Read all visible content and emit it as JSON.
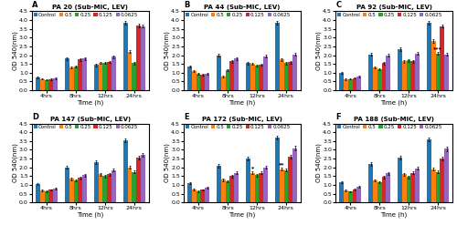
{
  "chart_data": [
    {
      "type": "bar",
      "title": "PA 20 (Sub-MIC, LEV)",
      "xlabel": "Time (h)",
      "ylabel": "OD 540(nm)",
      "categories": [
        "4hrs",
        "8hrs",
        "12hrs",
        "24hrs"
      ],
      "series": [
        {
          "name": "Control",
          "values": [
            0.75,
            1.8,
            1.45,
            3.85
          ],
          "errors": [
            0.05,
            0.08,
            0.07,
            0.1
          ]
        },
        {
          "name": "0.5",
          "values": [
            0.65,
            1.3,
            1.55,
            2.2
          ],
          "errors": [
            0.04,
            0.06,
            0.06,
            0.08
          ]
        },
        {
          "name": "0.25",
          "values": [
            0.6,
            1.35,
            1.55,
            1.55
          ],
          "errors": [
            0.04,
            0.06,
            0.05,
            0.07
          ]
        },
        {
          "name": "0.125",
          "values": [
            0.62,
            1.75,
            1.6,
            3.7
          ],
          "errors": [
            0.04,
            0.07,
            0.06,
            0.09
          ]
        },
        {
          "name": "0.0625",
          "values": [
            0.68,
            1.8,
            1.9,
            3.65
          ],
          "errors": [
            0.05,
            0.07,
            0.07,
            0.09
          ]
        }
      ],
      "annotations": [
        {
          "text": "A"
        }
      ],
      "ylim": [
        0,
        4.5
      ],
      "yticks": [
        {
          "value": 0,
          "label": "0.0"
        },
        0.5,
        {
          "value": 1,
          "label": "1.0"
        },
        1.5,
        {
          "value": 2,
          "label": "2.0"
        },
        2.5,
        {
          "value": 3,
          "label": "3.0"
        },
        3.5,
        {
          "value": 4,
          "label": "4.0"
        },
        4.5
      ],
      "legend": "upper left"
    },
    {
      "type": "bar",
      "title": "PA 44 (Sub-MIC, LEV)",
      "xlabel": "Time (h)",
      "ylabel": "OD 540(nm)",
      "categories": [
        "4hrs",
        "8hrs",
        "12hrs",
        "24hrs"
      ],
      "series": [
        {
          "name": "Control",
          "values": [
            1.35,
            2.0,
            1.55,
            3.85
          ],
          "errors": [
            0.06,
            0.09,
            0.07,
            0.1
          ]
        },
        {
          "name": "0.5",
          "values": [
            1.1,
            0.8,
            1.5,
            1.75
          ],
          "errors": [
            0.05,
            0.05,
            0.06,
            0.08
          ]
        },
        {
          "name": "0.25",
          "values": [
            0.95,
            1.15,
            1.4,
            1.55
          ],
          "errors": [
            0.05,
            0.06,
            0.06,
            0.07
          ]
        },
        {
          "name": "0.125",
          "values": [
            0.9,
            1.65,
            1.45,
            1.6
          ],
          "errors": [
            0.05,
            0.07,
            0.06,
            0.07
          ]
        },
        {
          "name": "0.0625",
          "values": [
            0.95,
            1.8,
            1.95,
            2.05
          ],
          "errors": [
            0.05,
            0.08,
            0.08,
            0.09
          ]
        }
      ],
      "annotations": [
        {
          "text": "B"
        }
      ],
      "ylim": [
        0,
        4.5
      ],
      "yticks": [
        {
          "value": 0,
          "label": "0.0"
        },
        0.5,
        {
          "value": 1,
          "label": "1.0"
        },
        1.5,
        {
          "value": 2,
          "label": "2.0"
        },
        2.5,
        {
          "value": 3,
          "label": "3.0"
        },
        3.5,
        {
          "value": 4,
          "label": "4.0"
        },
        4.5
      ],
      "legend": "upper left"
    },
    {
      "type": "bar",
      "title": "PA 92 (Sub-MIC, LEV)",
      "xlabel": "Time (h)",
      "ylabel": "OD 540(nm)",
      "categories": [
        "4hrs",
        "8hrs",
        "12hrs",
        "24hrs"
      ],
      "series": [
        {
          "name": "Control",
          "values": [
            1.0,
            2.05,
            2.35,
            3.85
          ],
          "errors": [
            0.05,
            0.09,
            0.09,
            0.1
          ]
        },
        {
          "name": "0.5",
          "values": [
            0.62,
            1.3,
            1.65,
            2.8
          ],
          "errors": [
            0.04,
            0.07,
            0.07,
            0.09
          ]
        },
        {
          "name": "0.25",
          "values": [
            0.65,
            1.2,
            1.7,
            2.1
          ],
          "errors": [
            0.04,
            0.06,
            0.07,
            0.08
          ]
        },
        {
          "name": "0.125",
          "values": [
            0.7,
            1.55,
            1.65,
            3.65
          ],
          "errors": [
            0.04,
            0.07,
            0.07,
            0.09
          ]
        },
        {
          "name": "0.0625",
          "values": [
            0.78,
            2.0,
            2.1,
            2.05
          ],
          "errors": [
            0.05,
            0.09,
            0.09,
            0.09
          ]
        }
      ],
      "annotations": [
        {
          "text": "C"
        },
        {
          "text": "***",
          "category": "24hrs",
          "series": "0.25"
        }
      ],
      "ylim": [
        0,
        4.5
      ],
      "yticks": [
        {
          "value": 0,
          "label": "0.0"
        },
        0.5,
        {
          "value": 1,
          "label": "1.0"
        },
        1.5,
        {
          "value": 2,
          "label": "2.0"
        },
        2.5,
        {
          "value": 3,
          "label": "3.0"
        },
        3.5,
        {
          "value": 4,
          "label": "4.0"
        },
        4.5
      ],
      "legend": "upper left"
    },
    {
      "type": "bar",
      "title": "PA 147 (Sub-MIC, LEV)",
      "xlabel": "Time (h)",
      "ylabel": "OD 540(nm)",
      "categories": [
        "4hrs",
        "8hrs",
        "12hrs",
        "24hrs"
      ],
      "series": [
        {
          "name": "Control",
          "values": [
            1.05,
            2.0,
            2.3,
            3.55
          ],
          "errors": [
            0.05,
            0.09,
            0.09,
            0.1
          ]
        },
        {
          "name": "0.5",
          "values": [
            0.7,
            1.35,
            1.6,
            2.0
          ],
          "errors": [
            0.04,
            0.07,
            0.07,
            0.08
          ]
        },
        {
          "name": "0.25",
          "values": [
            0.65,
            1.25,
            1.5,
            1.75
          ],
          "errors": [
            0.04,
            0.06,
            0.06,
            0.08
          ]
        },
        {
          "name": "0.125",
          "values": [
            0.72,
            1.4,
            1.6,
            2.55
          ],
          "errors": [
            0.04,
            0.07,
            0.06,
            0.09
          ]
        },
        {
          "name": "0.0625",
          "values": [
            0.8,
            1.55,
            1.85,
            2.7
          ],
          "errors": [
            0.05,
            0.07,
            0.08,
            0.1
          ]
        }
      ],
      "annotations": [
        {
          "text": "D"
        }
      ],
      "ylim": [
        0,
        4.5
      ],
      "yticks": [
        {
          "value": 0,
          "label": "0.0"
        },
        0.5,
        {
          "value": 1,
          "label": "1.0"
        },
        1.5,
        {
          "value": 2,
          "label": "2.0"
        },
        2.5,
        {
          "value": 3,
          "label": "3.0"
        },
        3.5,
        {
          "value": 4,
          "label": "4.0"
        },
        4.5
      ],
      "legend": "upper left"
    },
    {
      "type": "bar",
      "title": "PA 172 (Sub-MIC, LEV)",
      "xlabel": "Time (h)",
      "ylabel": "OD 540(nm)",
      "categories": [
        "4hrs",
        "8hrs",
        "12hrs",
        "24hrs"
      ],
      "series": [
        {
          "name": "Control",
          "values": [
            1.1,
            2.1,
            2.5,
            3.7
          ],
          "errors": [
            0.05,
            0.09,
            0.1,
            0.11
          ]
        },
        {
          "name": "0.5",
          "values": [
            0.75,
            1.3,
            1.7,
            1.9
          ],
          "errors": [
            0.04,
            0.07,
            0.07,
            0.08
          ]
        },
        {
          "name": "0.25",
          "values": [
            0.65,
            1.2,
            1.55,
            1.85
          ],
          "errors": [
            0.04,
            0.06,
            0.06,
            0.08
          ]
        },
        {
          "name": "0.125",
          "values": [
            0.72,
            1.5,
            1.7,
            2.6
          ],
          "errors": [
            0.04,
            0.07,
            0.07,
            0.1
          ]
        },
        {
          "name": "0.0625",
          "values": [
            0.85,
            1.7,
            2.0,
            3.1
          ],
          "errors": [
            0.05,
            0.08,
            0.09,
            0.11
          ]
        }
      ],
      "annotations": [
        {
          "text": "E"
        },
        {
          "text": "**",
          "category": "24hrs",
          "series": "0.5"
        },
        {
          "text": "*",
          "category": "12hrs",
          "series": "0.5"
        }
      ],
      "ylim": [
        0,
        4.5
      ],
      "yticks": [
        {
          "value": 0,
          "label": "0.0"
        },
        0.5,
        {
          "value": 1,
          "label": "1.0"
        },
        1.5,
        {
          "value": 2,
          "label": "2.0"
        },
        2.5,
        {
          "value": 3,
          "label": "3.0"
        },
        3.5,
        {
          "value": 4,
          "label": "4.0"
        },
        4.5
      ],
      "legend": "upper left"
    },
    {
      "type": "bar",
      "title": "PA 188 (Sub-MIC, LEV)",
      "xlabel": "Time (h)",
      "ylabel": "OD 540(nm)",
      "categories": [
        "4hrs",
        "8hrs",
        "12hrs",
        "24hrs"
      ],
      "series": [
        {
          "name": "Control",
          "values": [
            1.15,
            2.2,
            2.55,
            3.6
          ],
          "errors": [
            0.05,
            0.09,
            0.1,
            0.11
          ]
        },
        {
          "name": "0.5",
          "values": [
            0.7,
            1.25,
            1.6,
            1.9
          ],
          "errors": [
            0.04,
            0.06,
            0.07,
            0.08
          ]
        },
        {
          "name": "0.25",
          "values": [
            0.62,
            1.15,
            1.45,
            1.75
          ],
          "errors": [
            0.04,
            0.06,
            0.06,
            0.08
          ]
        },
        {
          "name": "0.125",
          "values": [
            0.75,
            1.45,
            1.7,
            2.5
          ],
          "errors": [
            0.04,
            0.07,
            0.07,
            0.09
          ]
        },
        {
          "name": "0.0625",
          "values": [
            0.88,
            1.65,
            1.95,
            3.05
          ],
          "errors": [
            0.05,
            0.07,
            0.08,
            0.11
          ]
        }
      ],
      "annotations": [
        {
          "text": "F"
        }
      ],
      "ylim": [
        0,
        4.5
      ],
      "yticks": [
        {
          "value": 0,
          "label": "0.0"
        },
        0.5,
        {
          "value": 1,
          "label": "1.0"
        },
        1.5,
        {
          "value": 2,
          "label": "2.0"
        },
        2.5,
        {
          "value": 3,
          "label": "3.0"
        },
        3.5,
        {
          "value": 4,
          "label": "4.0"
        },
        4.5
      ],
      "legend": "upper left"
    }
  ]
}
